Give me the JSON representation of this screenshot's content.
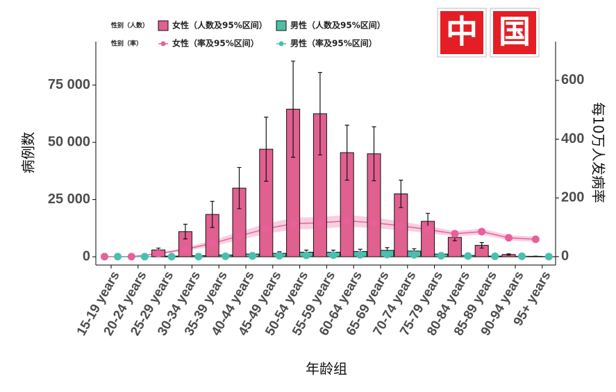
{
  "chart_data": {
    "type": "bar",
    "x_label": "年龄组",
    "y_label": "病例数",
    "y2_label": "每10万人发病率",
    "legend_titles": [
      "性别（人数）",
      "性别（率）"
    ],
    "badge": [
      "中",
      "国"
    ],
    "categories": [
      "15-19 years",
      "20-24 years",
      "25-29 years",
      "30-34 years",
      "35-39 years",
      "40-44 years",
      "45-49 years",
      "50-54 years",
      "55-59 years",
      "60-64 years",
      "65-69 years",
      "70-74 years",
      "75-79 years",
      "80-84 years",
      "85-89 years",
      "90-94 years",
      "95+ years"
    ],
    "series": [
      {
        "name": "女性（人数及95%区间）",
        "type": "bar",
        "color": "#e0608f",
        "values": [
          0,
          0,
          3000,
          11000,
          18500,
          30000,
          47000,
          64500,
          62500,
          45500,
          45000,
          27500,
          15500,
          8500,
          5000,
          1000,
          200
        ],
        "errors": [
          0,
          0,
          800,
          3200,
          5700,
          9000,
          14000,
          21000,
          18000,
          12000,
          11800,
          6000,
          3500,
          1500,
          1200,
          300,
          50
        ]
      },
      {
        "name": "男性（人数及95%区间）",
        "type": "bar",
        "color": "#4cbfa6",
        "values": [
          0,
          0,
          300,
          500,
          800,
          1200,
          1500,
          2000,
          2000,
          2300,
          2800,
          2500,
          1200,
          600,
          300,
          100,
          50
        ],
        "errors": [
          0,
          0,
          150,
          250,
          400,
          600,
          700,
          900,
          900,
          1000,
          1200,
          1000,
          500,
          300,
          150,
          50,
          20
        ]
      },
      {
        "name": "女性（率及95%区间）",
        "type": "line",
        "axis": "y2",
        "color": "#e8609a",
        "values": [
          0,
          0,
          10,
          25,
          45,
          70,
          95,
          112,
          115,
          122,
          115,
          105,
          92,
          78,
          85,
          64,
          59
        ],
        "errors": [
          0,
          0,
          3,
          6,
          10,
          14,
          17,
          20,
          20,
          20,
          18,
          15,
          12,
          9,
          10,
          9,
          9
        ]
      },
      {
        "name": "男性（率及95%区间）",
        "type": "line",
        "axis": "y2",
        "color": "#49bfb0",
        "values": [
          0,
          0,
          0,
          0,
          1,
          2,
          3,
          4,
          5,
          6,
          7,
          6,
          3,
          2,
          1,
          1,
          0
        ]
      }
    ],
    "ylim": [
      -3000,
      94000
    ],
    "yticks": [
      0,
      {
        "value": 25000,
        "label": "25 000"
      },
      {
        "value": 50000,
        "label": "50 000"
      },
      {
        "value": 75000,
        "label": "75 000"
      }
    ],
    "y2lim": [
      -24,
      732
    ],
    "y2ticks": [
      0,
      200,
      400,
      600
    ],
    "grid": false
  }
}
